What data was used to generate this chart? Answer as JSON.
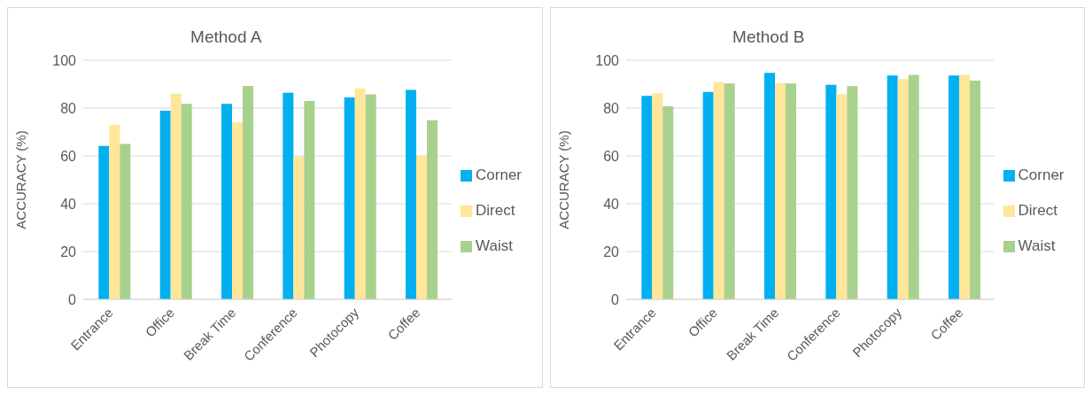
{
  "chart_data": [
    {
      "type": "bar",
      "title": "Method A",
      "ylabel": "ACCURACY (%)",
      "categories": [
        "Entrance",
        "Office",
        "Break Time",
        "Conference",
        "Photocopy",
        "Coffee"
      ],
      "ylim": [
        0,
        100
      ],
      "yticks": [
        0,
        20,
        40,
        60,
        80,
        100
      ],
      "grid": "y",
      "legend": "right",
      "series": [
        {
          "name": "Corner",
          "color": "#00b0f0",
          "values": [
            64.2,
            78.9,
            81.8,
            86.4,
            84.4,
            87.6
          ]
        },
        {
          "name": "Direct",
          "color": "#ffe699",
          "values": [
            73,
            86,
            74,
            59.6,
            88.2,
            60
          ]
        },
        {
          "name": "Waist",
          "color": "#a9d18e",
          "values": [
            65,
            81.8,
            89.3,
            83,
            85.7,
            74.9
          ]
        }
      ]
    },
    {
      "type": "bar",
      "title": "Method B",
      "ylabel": "ACCURACY (%)",
      "categories": [
        "Entrance",
        "Office",
        "Break Time",
        "Conference",
        "Photocopy",
        "Coffee"
      ],
      "ylim": [
        0,
        100
      ],
      "yticks": [
        0,
        20,
        40,
        60,
        80,
        100
      ],
      "grid": "y",
      "legend": "right",
      "series": [
        {
          "name": "Corner",
          "color": "#00b0f0",
          "values": [
            85.1,
            86.8,
            94.7,
            89.7,
            93.6,
            93.6
          ]
        },
        {
          "name": "Direct",
          "color": "#ffe699",
          "values": [
            86.2,
            90.8,
            90.5,
            85.7,
            92.1,
            93.9
          ]
        },
        {
          "name": "Waist",
          "color": "#a9d18e",
          "values": [
            80.7,
            90.3,
            90.3,
            89.2,
            93.9,
            91.5
          ]
        }
      ]
    }
  ]
}
